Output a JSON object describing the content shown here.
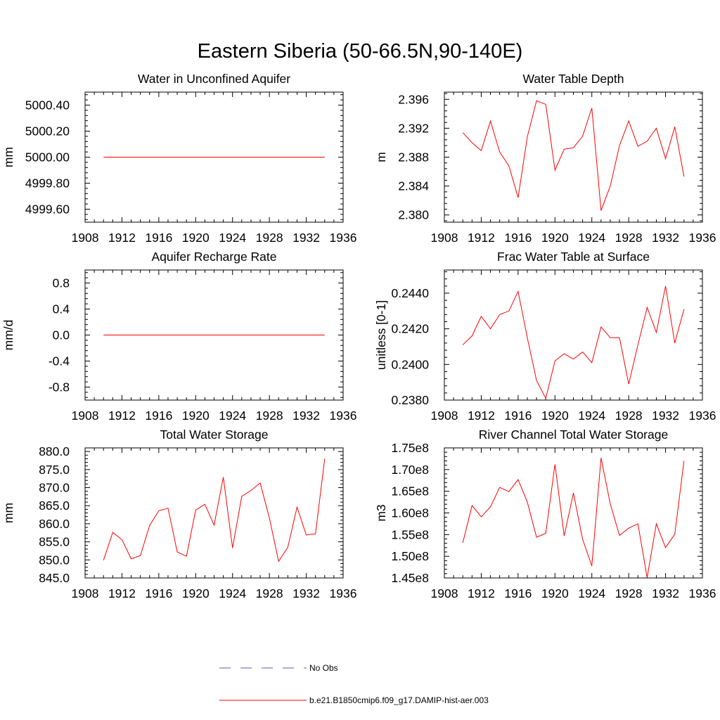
{
  "figure": {
    "title": "Eastern Siberia (50-66.5N,90-140E)"
  },
  "legend": {
    "placement": "bottom-center",
    "entries": [
      {
        "label": "No Obs",
        "color": "#5b5bb5",
        "style": "dashed"
      },
      {
        "label": "b.e21.B1850cmip6.f09_g17.DAMIP-hist-aer.003",
        "color": "#ff0000",
        "style": "solid"
      }
    ]
  },
  "chart_data": [
    {
      "type": "line",
      "title": "Water in Unconfined Aquifer",
      "xlabel": "",
      "ylabel": "mm",
      "xlim": [
        1908,
        1936
      ],
      "ylim": [
        4999.5,
        5000.5
      ],
      "xticks": [
        1908,
        1912,
        1916,
        1920,
        1924,
        1928,
        1932,
        1936
      ],
      "yticks": [
        4999.6,
        4999.8,
        5000.0,
        5000.2,
        5000.4
      ],
      "ytick_labels": [
        "4999.60",
        "4999.80",
        "5000.00",
        "5000.20",
        "5000.40"
      ],
      "grid": false,
      "x": [
        1910,
        1911,
        1912,
        1913,
        1914,
        1915,
        1916,
        1917,
        1918,
        1919,
        1920,
        1921,
        1922,
        1923,
        1924,
        1925,
        1926,
        1927,
        1928,
        1929,
        1930,
        1931,
        1932,
        1933,
        1934
      ],
      "series": [
        {
          "color": "#ff0000",
          "values": [
            5000,
            5000,
            5000,
            5000,
            5000,
            5000,
            5000,
            5000,
            5000,
            5000,
            5000,
            5000,
            5000,
            5000,
            5000,
            5000,
            5000,
            5000,
            5000,
            5000,
            5000,
            5000,
            5000,
            5000,
            5000
          ]
        }
      ]
    },
    {
      "type": "line",
      "title": "Water Table Depth",
      "xlabel": "",
      "ylabel": "m",
      "xlim": [
        1908,
        1936
      ],
      "ylim": [
        2.379,
        2.397
      ],
      "xticks": [
        1908,
        1912,
        1916,
        1920,
        1924,
        1928,
        1932,
        1936
      ],
      "yticks": [
        2.38,
        2.384,
        2.388,
        2.392,
        2.396
      ],
      "ytick_labels": [
        "2.380",
        "2.384",
        "2.388",
        "2.392",
        "2.396"
      ],
      "grid": false,
      "x": [
        1910,
        1911,
        1912,
        1913,
        1914,
        1915,
        1916,
        1917,
        1918,
        1919,
        1920,
        1921,
        1922,
        1923,
        1924,
        1925,
        1926,
        1927,
        1928,
        1929,
        1930,
        1931,
        1932,
        1933,
        1934
      ],
      "series": [
        {
          "color": "#ff0000",
          "values": [
            2.3914,
            2.39,
            2.3889,
            2.393,
            2.3887,
            2.3868,
            2.3824,
            2.3908,
            2.3958,
            2.3953,
            2.3862,
            2.3891,
            2.3893,
            2.3909,
            2.3948,
            2.3806,
            2.384,
            2.3896,
            2.393,
            2.3895,
            2.3902,
            2.392,
            2.3878,
            2.3922,
            2.3853
          ]
        }
      ]
    },
    {
      "type": "line",
      "title": "Aquifer Recharge Rate",
      "xlabel": "",
      "ylabel": "mm/d",
      "xlim": [
        1908,
        1936
      ],
      "ylim": [
        -1.0,
        1.0
      ],
      "xticks": [
        1908,
        1912,
        1916,
        1920,
        1924,
        1928,
        1932,
        1936
      ],
      "yticks": [
        -0.8,
        -0.4,
        0.0,
        0.4,
        0.8
      ],
      "ytick_labels": [
        "-0.8",
        "-0.4",
        "0.0",
        "0.4",
        "0.8"
      ],
      "grid": false,
      "x": [
        1910,
        1911,
        1912,
        1913,
        1914,
        1915,
        1916,
        1917,
        1918,
        1919,
        1920,
        1921,
        1922,
        1923,
        1924,
        1925,
        1926,
        1927,
        1928,
        1929,
        1930,
        1931,
        1932,
        1933,
        1934
      ],
      "series": [
        {
          "color": "#ff0000",
          "values": [
            0,
            0,
            0,
            0,
            0,
            0,
            0,
            0,
            0,
            0,
            0,
            0,
            0,
            0,
            0,
            0,
            0,
            0,
            0,
            0,
            0,
            0,
            0,
            0,
            0
          ]
        }
      ]
    },
    {
      "type": "line",
      "title": "Frac Water Table at Surface",
      "xlabel": "",
      "ylabel": "unitless [0-1]",
      "xlim": [
        1908,
        1936
      ],
      "ylim": [
        0.238,
        0.2453
      ],
      "xticks": [
        1908,
        1912,
        1916,
        1920,
        1924,
        1928,
        1932,
        1936
      ],
      "yticks": [
        0.238,
        0.24,
        0.242,
        0.244
      ],
      "ytick_labels": [
        "0.2380",
        "0.2400",
        "0.2420",
        "0.2440"
      ],
      "grid": false,
      "x": [
        1910,
        1911,
        1912,
        1913,
        1914,
        1915,
        1916,
        1917,
        1918,
        1919,
        1920,
        1921,
        1922,
        1923,
        1924,
        1925,
        1926,
        1927,
        1928,
        1929,
        1930,
        1931,
        1932,
        1933,
        1934
      ],
      "series": [
        {
          "color": "#ff0000",
          "values": [
            0.2411,
            0.2416,
            0.2427,
            0.242,
            0.2428,
            0.243,
            0.2441,
            0.2415,
            0.2391,
            0.2381,
            0.2402,
            0.2406,
            0.2403,
            0.2407,
            0.2401,
            0.2421,
            0.2415,
            0.2415,
            0.2389,
            0.2411,
            0.2432,
            0.2418,
            0.2444,
            0.2412,
            0.2431
          ]
        }
      ]
    },
    {
      "type": "line",
      "title": "Total Water Storage",
      "xlabel": "",
      "ylabel": "mm",
      "xlim": [
        1908,
        1936
      ],
      "ylim": [
        845.0,
        881.0
      ],
      "xticks": [
        1908,
        1912,
        1916,
        1920,
        1924,
        1928,
        1932,
        1936
      ],
      "yticks": [
        845,
        850,
        855,
        860,
        865,
        870,
        875,
        880
      ],
      "ytick_labels": [
        "845.0",
        "850.0",
        "855.0",
        "860.0",
        "865.0",
        "870.0",
        "875.0",
        "880.0"
      ],
      "grid": false,
      "x": [
        1910,
        1911,
        1912,
        1913,
        1914,
        1915,
        1916,
        1917,
        1918,
        1919,
        1920,
        1921,
        1922,
        1923,
        1924,
        1925,
        1926,
        1927,
        1928,
        1929,
        1930,
        1931,
        1932,
        1933,
        1934
      ],
      "series": [
        {
          "color": "#ff0000",
          "values": [
            849.9,
            857.6,
            855.6,
            850.3,
            851.2,
            859.5,
            863.6,
            864.3,
            852.2,
            851.0,
            863.8,
            865.4,
            859.6,
            872.9,
            853.3,
            867.6,
            869.2,
            871.3,
            861.6,
            849.6,
            853.5,
            864.6,
            856.9,
            857.2,
            878.0
          ]
        }
      ]
    },
    {
      "type": "line",
      "title": "River Channel Total Water Storage",
      "xlabel": "",
      "ylabel": "m3",
      "xlim": [
        1908,
        1936
      ],
      "ylim": [
        145000000.0,
        175000000.0
      ],
      "xticks": [
        1908,
        1912,
        1916,
        1920,
        1924,
        1928,
        1932,
        1936
      ],
      "yticks": [
        145000000.0,
        150000000.0,
        155000000.0,
        160000000.0,
        165000000.0,
        170000000.0,
        175000000.0
      ],
      "ytick_labels": [
        "1.45e8",
        "1.50e8",
        "1.55e8",
        "1.60e8",
        "1.65e8",
        "1.70e8",
        "1.75e8"
      ],
      "grid": false,
      "x": [
        1910,
        1911,
        1912,
        1913,
        1914,
        1915,
        1916,
        1917,
        1918,
        1919,
        1920,
        1921,
        1922,
        1923,
        1924,
        1925,
        1926,
        1927,
        1928,
        1929,
        1930,
        1931,
        1932,
        1933,
        1934
      ],
      "series": [
        {
          "color": "#ff0000",
          "values": [
            153100000.0,
            161700000.0,
            159100000.0,
            161400000.0,
            165900000.0,
            164900000.0,
            167700000.0,
            162500000.0,
            154400000.0,
            155300000.0,
            171200000.0,
            154700000.0,
            164600000.0,
            153900000.0,
            147800000.0,
            172700000.0,
            162100000.0,
            154800000.0,
            156500000.0,
            157500000.0,
            145100000.0,
            157500000.0,
            152000000.0,
            155100000.0,
            172000000.0
          ]
        }
      ]
    }
  ]
}
